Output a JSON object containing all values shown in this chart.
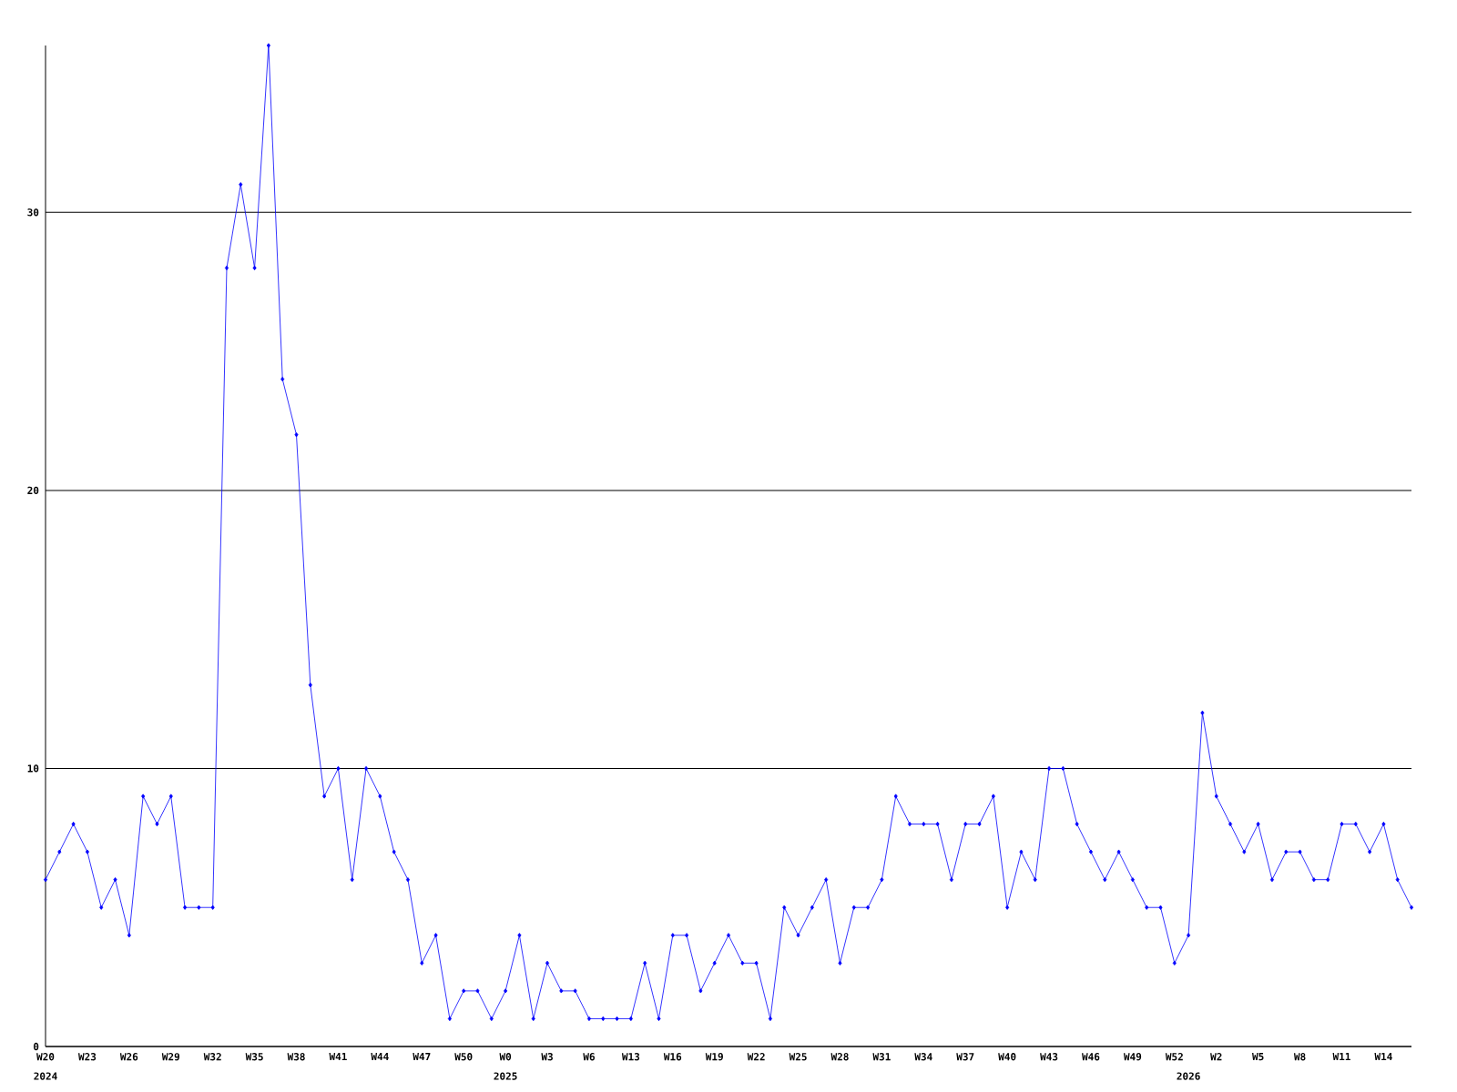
{
  "chart_data": {
    "type": "line",
    "categories": [
      "W20",
      null,
      null,
      "W23",
      null,
      null,
      "W26",
      null,
      null,
      "W29",
      null,
      null,
      "W32",
      null,
      null,
      "W35",
      null,
      null,
      "W38",
      null,
      null,
      "W41",
      null,
      null,
      "W44",
      null,
      null,
      "W47",
      null,
      null,
      "W50",
      null,
      null,
      "W0",
      null,
      null,
      "W3",
      null,
      null,
      "W6",
      null,
      null,
      "W13",
      null,
      null,
      "W16",
      null,
      null,
      "W19",
      null,
      null,
      "W22",
      null,
      null,
      "W25",
      null,
      null,
      "W28",
      null,
      null,
      "W31",
      null,
      null,
      "W34",
      null,
      null,
      "W37",
      null,
      null,
      "W40",
      null,
      null,
      "W43",
      null,
      null,
      "W46",
      null,
      null,
      "W49",
      null,
      null,
      "W52",
      null,
      null,
      "W2",
      null,
      null,
      "W5",
      null,
      null,
      "W8",
      null,
      null,
      "W11",
      null,
      null,
      "W14",
      null,
      null
    ],
    "values": [
      6,
      7,
      8,
      7,
      5,
      6,
      4,
      9,
      8,
      9,
      5,
      5,
      5,
      28,
      31,
      28,
      36,
      24,
      22,
      13,
      9,
      10,
      6,
      10,
      9,
      7,
      6,
      3,
      4,
      1,
      2,
      2,
      1,
      2,
      4,
      1,
      3,
      2,
      2,
      1,
      1,
      1,
      1,
      3,
      1,
      4,
      4,
      2,
      3,
      4,
      3,
      3,
      1,
      5,
      4,
      5,
      6,
      3,
      5,
      5,
      6,
      9,
      8,
      8,
      8,
      6,
      8,
      8,
      9,
      5,
      7,
      6,
      10,
      10,
      8,
      7,
      6,
      7,
      6,
      5,
      5,
      3,
      4,
      12,
      9,
      8,
      7,
      8,
      6,
      7,
      7,
      6,
      6,
      8,
      8,
      7,
      8,
      6,
      5
    ],
    "color": "#0000ff",
    "marker": "diamond",
    "grid": "y",
    "ylim": [
      0,
      36
    ],
    "yticks": [
      0,
      10,
      20,
      30
    ],
    "annotations": [
      "2024",
      "2025",
      "2026"
    ]
  }
}
